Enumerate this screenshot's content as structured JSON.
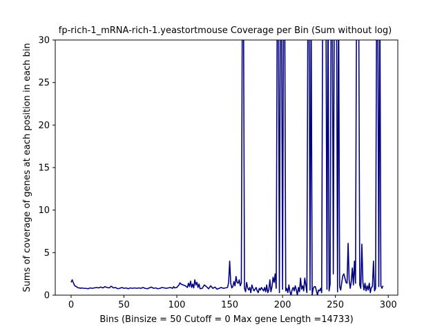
{
  "chart_data": {
    "type": "line",
    "title": "fp-rich-1_mRNA-rich-1.yeastortmouse Coverage per Bin (Sum without log)",
    "xlabel": "Bins  (Binsize = 50 Cutoff = 0 Max gene Length =14733)",
    "ylabel": "Sums of coverage of genes at each position in each bin",
    "xlim": [
      -15,
      309
    ],
    "ylim": [
      0,
      30
    ],
    "xticks": [
      0,
      50,
      100,
      150,
      200,
      250,
      300
    ],
    "yticks": [
      0,
      5,
      10,
      15,
      20,
      25,
      30
    ],
    "grid": false,
    "line_color": "#00007f",
    "series": [
      {
        "values": [
          [
            0,
            1.5
          ],
          [
            1,
            1.8
          ],
          [
            2,
            1.5
          ],
          [
            3,
            1.2
          ],
          [
            4,
            1.05
          ],
          [
            5,
            1.0
          ],
          [
            6,
            0.9
          ],
          [
            7,
            0.85
          ],
          [
            8,
            0.85
          ],
          [
            9,
            0.8
          ],
          [
            10,
            0.85
          ],
          [
            12,
            0.8
          ],
          [
            14,
            0.8
          ],
          [
            16,
            0.75
          ],
          [
            18,
            0.85
          ],
          [
            20,
            0.8
          ],
          [
            22,
            0.85
          ],
          [
            24,
            0.9
          ],
          [
            26,
            0.85
          ],
          [
            28,
            0.95
          ],
          [
            30,
            0.85
          ],
          [
            32,
            1.0
          ],
          [
            34,
            0.9
          ],
          [
            36,
            0.85
          ],
          [
            38,
            1.05
          ],
          [
            40,
            0.85
          ],
          [
            42,
            0.9
          ],
          [
            44,
            0.75
          ],
          [
            46,
            0.8
          ],
          [
            48,
            0.9
          ],
          [
            50,
            0.8
          ],
          [
            52,
            0.85
          ],
          [
            54,
            0.75
          ],
          [
            56,
            0.85
          ],
          [
            58,
            0.8
          ],
          [
            60,
            0.85
          ],
          [
            62,
            0.8
          ],
          [
            64,
            0.85
          ],
          [
            66,
            0.8
          ],
          [
            68,
            0.9
          ],
          [
            70,
            0.8
          ],
          [
            72,
            0.75
          ],
          [
            74,
            0.85
          ],
          [
            76,
            0.95
          ],
          [
            78,
            0.8
          ],
          [
            80,
            0.85
          ],
          [
            82,
            0.75
          ],
          [
            84,
            0.8
          ],
          [
            86,
            0.9
          ],
          [
            88,
            0.85
          ],
          [
            90,
            0.8
          ],
          [
            92,
            0.85
          ],
          [
            94,
            0.9
          ],
          [
            96,
            0.8
          ],
          [
            97,
            1.0
          ],
          [
            98,
            0.85
          ],
          [
            100,
            0.9
          ],
          [
            102,
            1.2
          ],
          [
            103,
            1.45
          ],
          [
            104,
            1.3
          ],
          [
            106,
            1.2
          ],
          [
            108,
            1.1
          ],
          [
            110,
            0.9
          ],
          [
            111,
            1.4
          ],
          [
            112,
            1.0
          ],
          [
            113,
            1.65
          ],
          [
            114,
            0.9
          ],
          [
            115,
            1.3
          ],
          [
            116,
            0.85
          ],
          [
            117,
            1.8
          ],
          [
            118,
            1.2
          ],
          [
            119,
            1.5
          ],
          [
            120,
            0.9
          ],
          [
            121,
            1.3
          ],
          [
            122,
            0.75
          ],
          [
            124,
            0.8
          ],
          [
            126,
            1.2
          ],
          [
            128,
            1.0
          ],
          [
            130,
            0.75
          ],
          [
            132,
            1.1
          ],
          [
            134,
            0.8
          ],
          [
            136,
            0.95
          ],
          [
            138,
            0.7
          ],
          [
            140,
            0.8
          ],
          [
            142,
            0.9
          ],
          [
            144,
            0.8
          ],
          [
            146,
            0.85
          ],
          [
            148,
            0.9
          ],
          [
            149,
            1.5
          ],
          [
            150,
            4.0
          ],
          [
            151,
            1.4
          ],
          [
            152,
            0.85
          ],
          [
            153,
            1.0
          ],
          [
            154,
            1.6
          ],
          [
            155,
            1.1
          ],
          [
            156,
            2.2
          ],
          [
            157,
            1.5
          ],
          [
            158,
            1.4
          ],
          [
            159,
            1.8
          ],
          [
            160,
            1.1
          ],
          [
            161,
            1.4
          ],
          [
            162,
            30
          ],
          [
            163,
            30
          ],
          [
            164,
            0.8
          ],
          [
            165,
            0.4
          ],
          [
            166,
            1.5
          ],
          [
            167,
            0.85
          ],
          [
            168,
            0.6
          ],
          [
            169,
            0.9
          ],
          [
            170,
            0.3
          ],
          [
            171,
            1.2
          ],
          [
            172,
            0.8
          ],
          [
            173,
            0.5
          ],
          [
            174,
            0.7
          ],
          [
            175,
            0.9
          ],
          [
            176,
            0.5
          ],
          [
            177,
            0.3
          ],
          [
            178,
            0.8
          ],
          [
            179,
            0.6
          ],
          [
            180,
            0.9
          ],
          [
            181,
            0.7
          ],
          [
            182,
            0.5
          ],
          [
            183,
            0.9
          ],
          [
            184,
            0.4
          ],
          [
            185,
            1.2
          ],
          [
            186,
            0.3
          ],
          [
            187,
            0.6
          ],
          [
            188,
            1.8
          ],
          [
            189,
            0.4
          ],
          [
            190,
            1.0
          ],
          [
            191,
            2.1
          ],
          [
            192,
            1.5
          ],
          [
            193,
            2.5
          ],
          [
            194,
            0.8
          ],
          [
            195,
            30
          ],
          [
            196,
            30
          ],
          [
            197,
            0.3
          ],
          [
            198,
            30
          ],
          [
            199,
            30
          ],
          [
            200,
            0.7
          ],
          [
            201,
            30
          ],
          [
            202,
            30
          ],
          [
            203,
            0.5
          ],
          [
            204,
            0.8
          ],
          [
            205,
            0.3
          ],
          [
            206,
            1.2
          ],
          [
            207,
            0.4
          ],
          [
            208,
            0.0
          ],
          [
            209,
            0.6
          ],
          [
            210,
            0.9
          ],
          [
            211,
            0.5
          ],
          [
            212,
            1.1
          ],
          [
            213,
            0.6
          ],
          [
            214,
            0.0
          ],
          [
            215,
            0.9
          ],
          [
            216,
            0.4
          ],
          [
            217,
            2.0
          ],
          [
            218,
            0.7
          ],
          [
            219,
            1.1
          ],
          [
            220,
            0.5
          ],
          [
            221,
            2.0
          ],
          [
            222,
            1.2
          ],
          [
            223,
            0.3
          ],
          [
            224,
            30
          ],
          [
            225,
            30
          ],
          [
            226,
            0.6
          ],
          [
            227,
            30
          ],
          [
            228,
            0.0
          ],
          [
            229,
            0.8
          ],
          [
            230,
            1.0
          ],
          [
            231,
            1.0
          ],
          [
            232,
            0.5
          ],
          [
            233,
            0.0
          ],
          [
            234,
            0.6
          ],
          [
            235,
            0.5
          ],
          [
            236,
            0.8
          ],
          [
            237,
            0.3
          ],
          [
            238,
            30
          ],
          [
            239,
            30
          ],
          [
            240,
            30
          ],
          [
            241,
            30
          ],
          [
            242,
            0.7
          ],
          [
            243,
            30
          ],
          [
            244,
            0.5
          ],
          [
            245,
            1.3
          ],
          [
            246,
            30
          ],
          [
            247,
            30
          ],
          [
            248,
            2.5
          ],
          [
            249,
            30
          ],
          [
            250,
            30
          ],
          [
            251,
            30
          ],
          [
            252,
            0.4
          ],
          [
            253,
            30
          ],
          [
            254,
            1.0
          ],
          [
            255,
            0.6
          ],
          [
            256,
            1.5
          ],
          [
            257,
            2.3
          ],
          [
            258,
            2.5
          ],
          [
            259,
            2.0
          ],
          [
            260,
            1.5
          ],
          [
            261,
            1.4
          ],
          [
            262,
            6.1
          ],
          [
            263,
            1.8
          ],
          [
            264,
            0.8
          ],
          [
            265,
            1.6
          ],
          [
            266,
            3.2
          ],
          [
            267,
            1.2
          ],
          [
            268,
            4.0
          ],
          [
            269,
            1.4
          ],
          [
            270,
            30
          ],
          [
            271,
            30
          ],
          [
            272,
            30
          ],
          [
            273,
            1.2
          ],
          [
            274,
            0.8
          ],
          [
            275,
            6.0
          ],
          [
            276,
            1.5
          ],
          [
            277,
            0.6
          ],
          [
            278,
            1.4
          ],
          [
            279,
            0.5
          ],
          [
            280,
            1.1
          ],
          [
            281,
            0.6
          ],
          [
            282,
            1.4
          ],
          [
            283,
            0.3
          ],
          [
            284,
            0.9
          ],
          [
            285,
            1.0
          ],
          [
            286,
            4.0
          ],
          [
            287,
            0.5
          ],
          [
            288,
            0.8
          ],
          [
            289,
            30
          ],
          [
            290,
            30
          ],
          [
            291,
            1.0
          ],
          [
            292,
            30
          ],
          [
            293,
            1.1
          ],
          [
            294,
            0.8
          ],
          [
            295,
            1.1
          ]
        ]
      }
    ]
  }
}
